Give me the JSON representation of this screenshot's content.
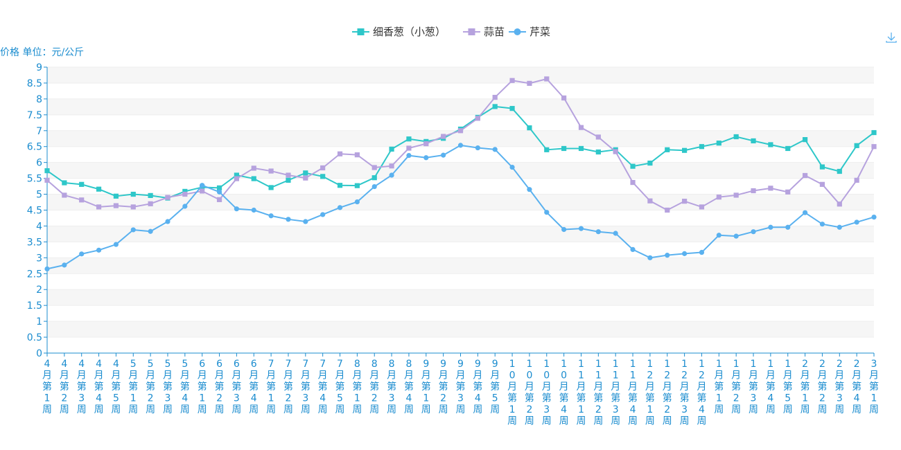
{
  "chart_data": {
    "type": "line",
    "ylabel": "价格 单位：元/公斤",
    "ylim": [
      0,
      9
    ],
    "yticks": [
      "0",
      "0.5",
      "1",
      "1.5",
      "2",
      "2.5",
      "3",
      "3.5",
      "4",
      "4.5",
      "5",
      "5.5",
      "6",
      "6.5",
      "7",
      "7.5",
      "8",
      "8.5",
      "9"
    ],
    "grid": "horizontal-bands",
    "legend_position": "top-center",
    "categories": [
      "4月第1周",
      "4月第2周",
      "4月第3周",
      "4月第4周",
      "4月第5周",
      "5月第1周",
      "5月第2周",
      "5月第3周",
      "5月第4周",
      "6月第1周",
      "6月第2周",
      "6月第3周",
      "6月第4周",
      "7月第1周",
      "7月第2周",
      "7月第3周",
      "7月第4周",
      "7月第5周",
      "8月第1周",
      "8月第2周",
      "8月第3周",
      "8月第4周",
      "9月第1周",
      "9月第2周",
      "9月第3周",
      "9月第4周",
      "9月第5周",
      "10月第1周",
      "10月第2周",
      "10月第3周",
      "10月第4周",
      "11月第1周",
      "11月第2周",
      "11月第3周",
      "11月第4周",
      "12月第1周",
      "12月第2周",
      "12月第3周",
      "12月第4周",
      "1月第1周",
      "1月第2周",
      "1月第3周",
      "1月第4周",
      "1月第5周",
      "2月第1周",
      "2月第2周",
      "2月第3周",
      "2月第4周",
      "3月第1周"
    ],
    "series": [
      {
        "name": "细香葱（小葱）",
        "color": "#2ec7c9",
        "marker": "square",
        "values": [
          5.74,
          5.36,
          5.31,
          5.16,
          4.94,
          5.0,
          4.96,
          4.88,
          5.09,
          5.22,
          5.2,
          5.6,
          5.49,
          5.21,
          5.44,
          5.67,
          5.56,
          5.28,
          5.27,
          5.52,
          6.42,
          6.74,
          6.66,
          6.76,
          7.05,
          7.42,
          7.76,
          7.7,
          7.09,
          6.4,
          6.44,
          6.44,
          6.33,
          6.4,
          5.88,
          5.98,
          6.4,
          6.38,
          6.5,
          6.61,
          6.81,
          6.68,
          6.56,
          6.44,
          6.72,
          5.86,
          5.72,
          6.53,
          6.94
        ]
      },
      {
        "name": "蒜苗",
        "color": "#b6a2de",
        "marker": "square",
        "values": [
          5.44,
          4.97,
          4.82,
          4.6,
          4.64,
          4.6,
          4.7,
          4.9,
          5.0,
          5.1,
          4.83,
          5.49,
          5.82,
          5.73,
          5.6,
          5.51,
          5.83,
          6.27,
          6.24,
          5.84,
          5.89,
          6.45,
          6.59,
          6.82,
          7.0,
          7.39,
          8.05,
          8.58,
          8.49,
          8.63,
          8.03,
          7.1,
          6.8,
          6.34,
          5.37,
          4.79,
          4.5,
          4.78,
          4.6,
          4.91,
          4.97,
          5.11,
          5.19,
          5.07,
          5.59,
          5.31,
          4.69,
          5.44,
          6.5
        ]
      },
      {
        "name": "芹菜",
        "color": "#5ab1ef",
        "marker": "circle",
        "values": [
          2.65,
          2.77,
          3.12,
          3.24,
          3.42,
          3.88,
          3.83,
          4.14,
          4.62,
          5.28,
          5.07,
          4.54,
          4.5,
          4.32,
          4.21,
          4.14,
          4.36,
          4.58,
          4.76,
          5.24,
          5.6,
          6.22,
          6.15,
          6.23,
          6.54,
          6.46,
          6.41,
          5.85,
          5.15,
          4.43,
          3.89,
          3.92,
          3.82,
          3.77,
          3.26,
          3.0,
          3.08,
          3.13,
          3.17,
          3.71,
          3.68,
          3.82,
          3.96,
          3.96,
          4.42,
          4.06,
          3.96,
          4.12,
          4.28
        ]
      }
    ],
    "toolbox": {
      "icon": "download-icon"
    }
  }
}
